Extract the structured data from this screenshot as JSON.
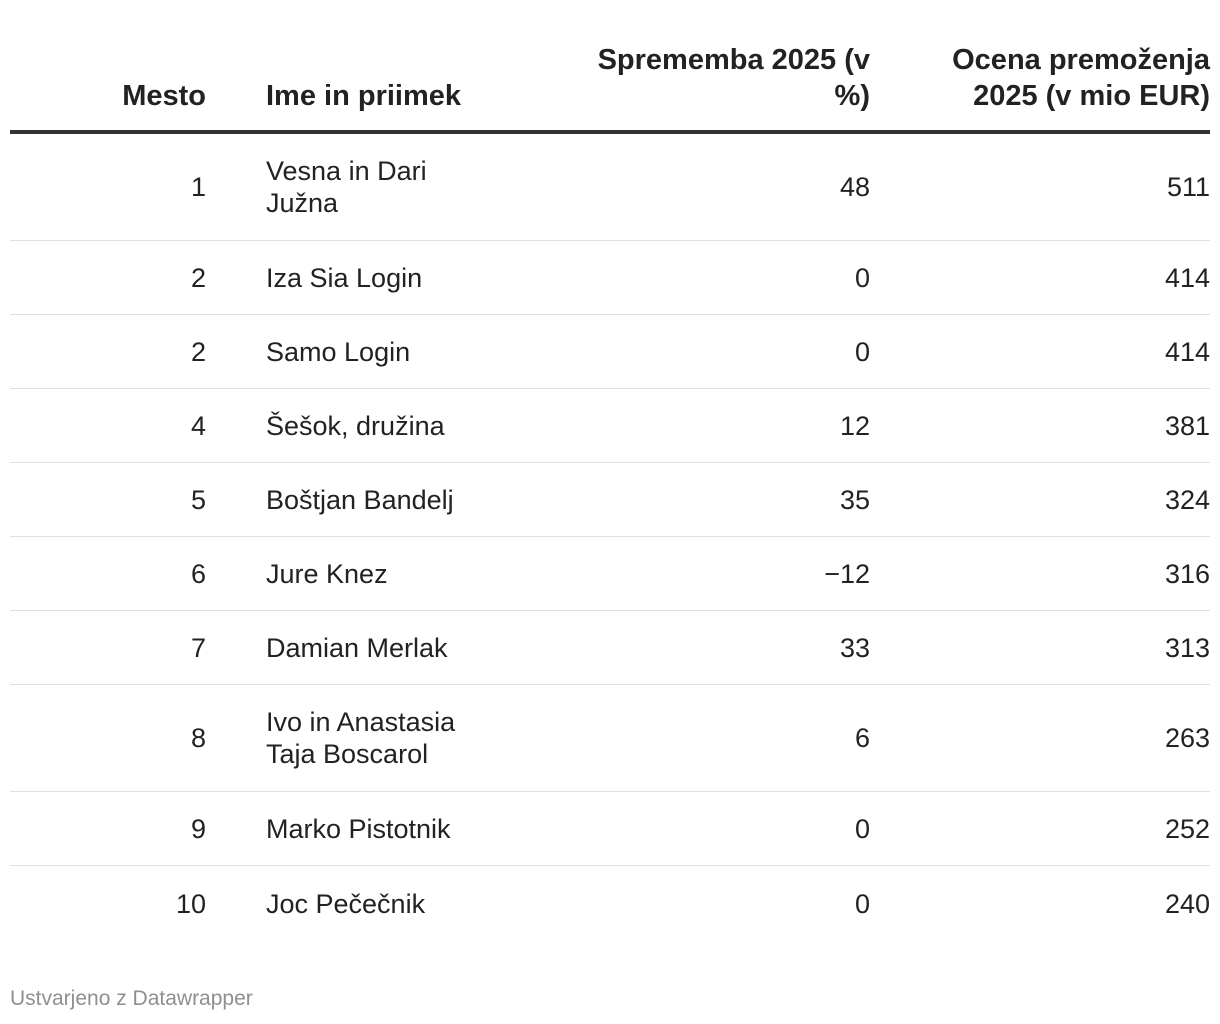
{
  "chart_data": {
    "type": "table",
    "columns": [
      "Mesto",
      "Ime in priimek",
      "Sprememba 2025 (v %)",
      "Ocena premoženja 2025 (v mio EUR)"
    ],
    "rows": [
      {
        "rank": "1",
        "name": "Vesna in Dari Južna",
        "change": "48",
        "worth": "511"
      },
      {
        "rank": "2",
        "name": "Iza Sia Login",
        "change": "0",
        "worth": "414"
      },
      {
        "rank": "2",
        "name": "Samo Login",
        "change": "0",
        "worth": "414"
      },
      {
        "rank": "4",
        "name": "Šešok, družina",
        "change": "12",
        "worth": "381"
      },
      {
        "rank": "5",
        "name": "Boštjan Bandelj",
        "change": "35",
        "worth": "324"
      },
      {
        "rank": "6",
        "name": "Jure Knez",
        "change": "−12",
        "worth": "316"
      },
      {
        "rank": "7",
        "name": "Damian Merlak",
        "change": "33",
        "worth": "313"
      },
      {
        "rank": "8",
        "name": "Ivo in Anastasia Taja Boscarol",
        "change": "6",
        "worth": "263"
      },
      {
        "rank": "9",
        "name": "Marko Pistotnik",
        "change": "0",
        "worth": "252"
      },
      {
        "rank": "10",
        "name": "Joc Pečečnik",
        "change": "0",
        "worth": "240"
      }
    ]
  },
  "footer": {
    "credit": "Ustvarjeno z Datawrapper"
  }
}
